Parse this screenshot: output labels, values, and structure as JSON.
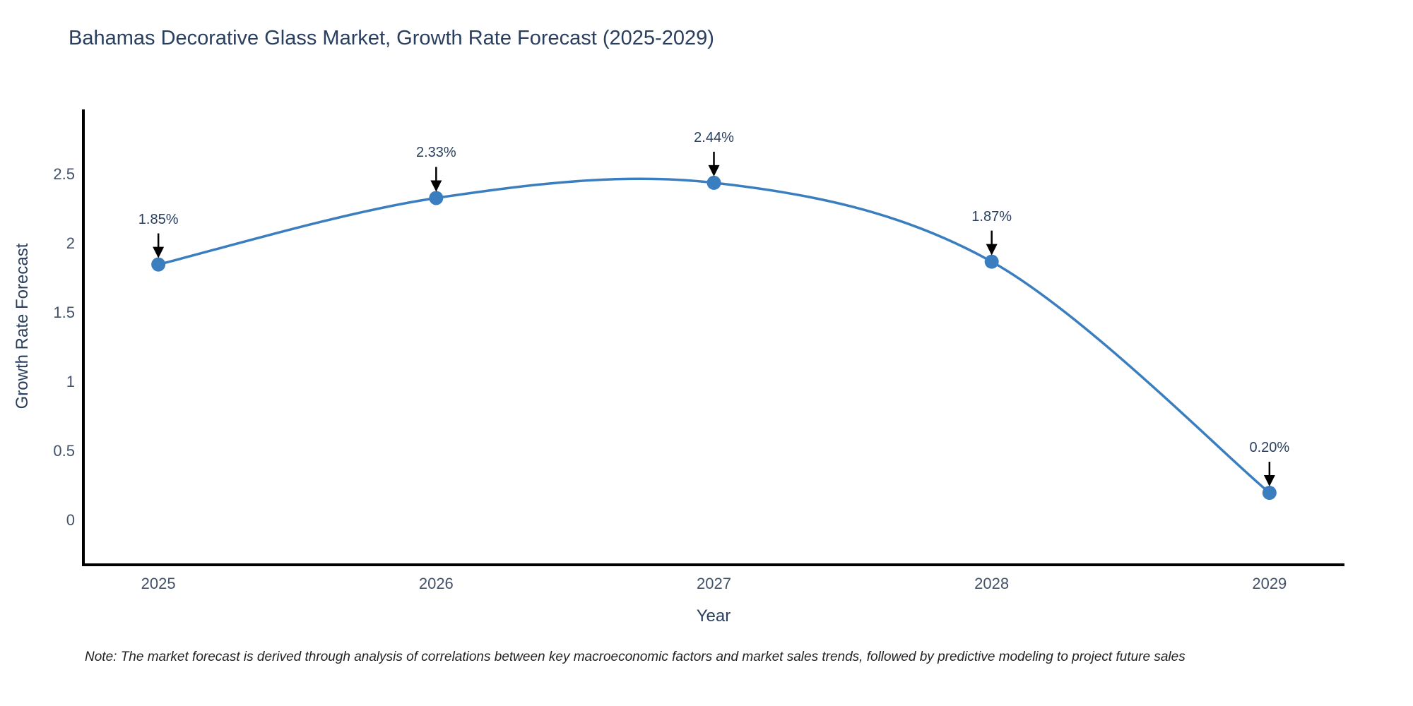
{
  "chart_data": {
    "type": "line",
    "line_shape": "spline",
    "title": "Bahamas Decorative Glass Market, Growth Rate Forecast (2025-2029)",
    "xlabel": "Year",
    "ylabel": "Growth Rate Forecast",
    "x": [
      2025,
      2026,
      2027,
      2028,
      2029
    ],
    "values": [
      1.85,
      2.33,
      2.44,
      1.87,
      0.2
    ],
    "point_labels": [
      "1.85%",
      "2.33%",
      "2.44%",
      "1.87%",
      "0.20%"
    ],
    "xtick_labels": [
      "2025",
      "2026",
      "2027",
      "2028",
      "2029"
    ],
    "ytick_values": [
      0,
      0.5,
      1,
      1.5,
      2,
      2.5
    ],
    "ytick_labels": [
      "0",
      "0.5",
      "1",
      "1.5",
      "2",
      "2.5"
    ],
    "xlim": [
      2024.73,
      2029.27
    ],
    "ylim": [
      -0.32,
      2.97
    ],
    "grid": false,
    "legend": "none",
    "line_color": "#3a7ebf",
    "marker_color": "#3a7ebf",
    "axis_line_color": "#000000",
    "annotation_arrow_color": "#000000"
  },
  "note": "Note: The market forecast is derived through analysis of correlations between key macroeconomic factors and market sales trends, followed by predictive modeling to project future sales",
  "colors": {
    "title": "#2a3f5f",
    "tick_label": "#42526b",
    "background": "#ffffff",
    "note_text": "#222222"
  }
}
